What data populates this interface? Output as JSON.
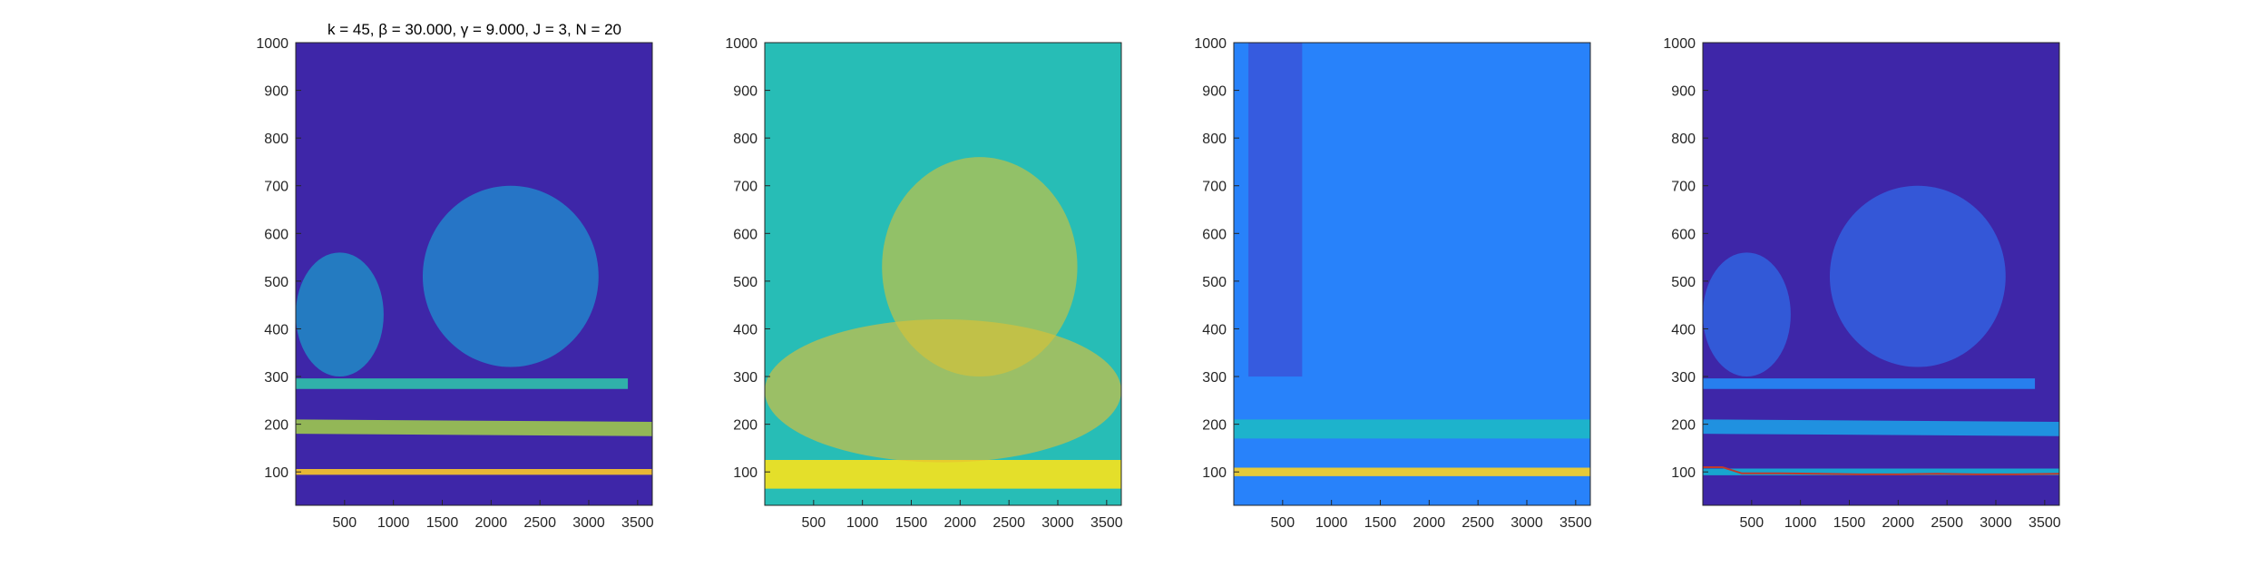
{
  "figure": {
    "title": "k = 45, β = 30.000, γ = 9.000, J = 3, N = 20"
  },
  "colors": {
    "background": "#3e26a8",
    "colormap": "parula",
    "overlay_line": "#c0392b"
  },
  "chart_data": [
    {
      "type": "heatmap",
      "title": "k = 45, β = 30.000, γ = 9.000, J = 3, N = 20",
      "colormap": "parula",
      "xlim": [
        0,
        3650
      ],
      "ylim": [
        30,
        1000
      ],
      "xticks": [
        500,
        1000,
        1500,
        2000,
        2500,
        3000,
        3500
      ],
      "yticks": [
        100,
        200,
        300,
        400,
        500,
        600,
        700,
        800,
        900,
        1000
      ],
      "background_level": 0.0,
      "features": [
        {
          "kind": "band",
          "x": [
            0,
            3650
          ],
          "y": [
            100,
            100
          ],
          "level": 0.9,
          "width": 12
        },
        {
          "kind": "band",
          "x": [
            0,
            3650
          ],
          "y": [
            195,
            190
          ],
          "level": 0.72,
          "width": 30
        },
        {
          "kind": "band",
          "x": [
            0,
            3400
          ],
          "y": [
            285,
            285
          ],
          "level": 0.55,
          "width": 22
        },
        {
          "kind": "blob",
          "x": [
            0,
            900
          ],
          "y": [
            300,
            560
          ],
          "level": 0.45
        },
        {
          "kind": "blob",
          "x": [
            1300,
            3100
          ],
          "y": [
            320,
            700
          ],
          "level": 0.42
        }
      ]
    },
    {
      "type": "heatmap",
      "colormap": "parula",
      "xlim": [
        0,
        3650
      ],
      "ylim": [
        30,
        1000
      ],
      "xticks": [
        500,
        1000,
        1500,
        2000,
        2500,
        3000,
        3500
      ],
      "yticks": [
        100,
        200,
        300,
        400,
        500,
        600,
        700,
        800,
        900,
        1000
      ],
      "background_level": 0.52,
      "features": [
        {
          "kind": "band",
          "x": [
            0,
            3650
          ],
          "y": [
            95,
            95
          ],
          "level": 0.95,
          "width": 60
        },
        {
          "kind": "blob",
          "x": [
            0,
            3650
          ],
          "y": [
            120,
            420
          ],
          "level": 0.85
        },
        {
          "kind": "blob",
          "x": [
            1200,
            3200
          ],
          "y": [
            300,
            760
          ],
          "level": 0.82
        }
      ]
    },
    {
      "type": "heatmap",
      "colormap": "parula",
      "xlim": [
        0,
        3650
      ],
      "ylim": [
        30,
        1000
      ],
      "xticks": [
        500,
        1000,
        1500,
        2000,
        2500,
        3000,
        3500
      ],
      "yticks": [
        100,
        200,
        300,
        400,
        500,
        600,
        700,
        800,
        900,
        1000
      ],
      "background_level": 0.3,
      "features": [
        {
          "kind": "band",
          "x": [
            0,
            3650
          ],
          "y": [
            100,
            100
          ],
          "level": 0.92,
          "width": 18
        },
        {
          "kind": "band",
          "x": [
            0,
            3650
          ],
          "y": [
            190,
            190
          ],
          "level": 0.48,
          "width": 40
        },
        {
          "kind": "column",
          "x": [
            150,
            700
          ],
          "y": [
            300,
            1000
          ],
          "level": 0.08
        }
      ]
    },
    {
      "type": "heatmap",
      "colormap": "parula",
      "xlim": [
        0,
        3650
      ],
      "ylim": [
        30,
        1000
      ],
      "xticks": [
        500,
        1000,
        1500,
        2000,
        2500,
        3000,
        3500
      ],
      "yticks": [
        100,
        200,
        300,
        400,
        500,
        600,
        700,
        800,
        900,
        1000
      ],
      "background_level": 0.0,
      "features": [
        {
          "kind": "band",
          "x": [
            0,
            3650
          ],
          "y": [
            100,
            100
          ],
          "level": 0.45,
          "width": 14
        },
        {
          "kind": "band",
          "x": [
            0,
            3650
          ],
          "y": [
            195,
            190
          ],
          "level": 0.38,
          "width": 30
        },
        {
          "kind": "band",
          "x": [
            0,
            3400
          ],
          "y": [
            285,
            285
          ],
          "level": 0.32,
          "width": 22
        },
        {
          "kind": "blob",
          "x": [
            0,
            900
          ],
          "y": [
            300,
            560
          ],
          "level": 0.28
        },
        {
          "kind": "blob",
          "x": [
            1300,
            3100
          ],
          "y": [
            320,
            700
          ],
          "level": 0.27
        }
      ],
      "overlay_line": {
        "x": [
          0,
          200,
          400,
          800,
          1200,
          1600,
          2000,
          2400,
          2800,
          3200,
          3650
        ],
        "y": [
          110,
          110,
          97,
          97,
          96,
          95,
          95,
          96,
          95,
          95,
          96
        ]
      }
    }
  ]
}
